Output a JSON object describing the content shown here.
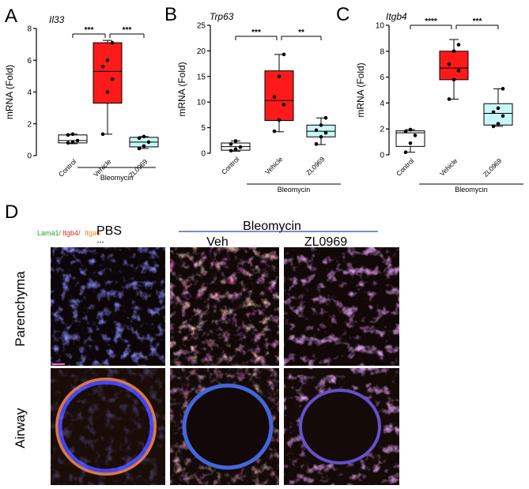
{
  "chart_data": [
    {
      "type": "box",
      "panel": "A",
      "title": "Il33",
      "ylabel": "mRNA (Fold)",
      "ylim": [
        0,
        8
      ],
      "yticks": [
        0,
        2,
        4,
        6,
        8
      ],
      "categories": [
        "Control",
        "Vehicle",
        "ZL0969"
      ],
      "group_label": "Bleomycin",
      "boxes": [
        {
          "name": "Control",
          "min": 0.75,
          "q1": 0.8,
          "median": 0.95,
          "q3": 1.3,
          "max": 1.35,
          "fill": "#ffffff",
          "points": [
            0.8,
            0.85,
            0.95,
            1.3,
            1.35
          ]
        },
        {
          "name": "Vehicle",
          "min": 1.35,
          "q1": 3.3,
          "median": 5.3,
          "q3": 7.1,
          "max": 7.25,
          "fill": "#ff1a1a",
          "points": [
            1.35,
            4.0,
            4.8,
            5.6,
            6.0,
            7.1
          ]
        },
        {
          "name": "ZL0969",
          "min": 0.45,
          "q1": 0.55,
          "median": 0.85,
          "q3": 1.15,
          "max": 1.2,
          "fill": "#c9f7f7",
          "points": [
            0.45,
            0.6,
            0.85,
            1.1,
            1.2
          ]
        }
      ],
      "significance": [
        {
          "from": 0,
          "to": 1,
          "label": "***"
        },
        {
          "from": 1,
          "to": 2,
          "label": "***"
        }
      ]
    },
    {
      "type": "box",
      "panel": "B",
      "title": "Trp63",
      "ylabel": "mRNA (Fold)",
      "ylim": [
        0,
        25
      ],
      "yticks": [
        0,
        5,
        10,
        15,
        20,
        25
      ],
      "categories": [
        "Control",
        "Vehicle",
        "ZL0969"
      ],
      "group_label": "Bleomycin",
      "boxes": [
        {
          "name": "Control",
          "min": 0.4,
          "q1": 0.6,
          "median": 1.3,
          "q3": 2.0,
          "max": 2.4,
          "fill": "#ffffff",
          "points": [
            0.5,
            0.8,
            1.2,
            1.8,
            2.4
          ]
        },
        {
          "name": "Vehicle",
          "min": 4.2,
          "q1": 6.4,
          "median": 10.3,
          "q3": 16.1,
          "max": 19.3,
          "fill": "#ff1a1a",
          "points": [
            4.3,
            6.5,
            9.5,
            11.0,
            15.0,
            19.3
          ]
        },
        {
          "name": "ZL0969",
          "min": 1.7,
          "q1": 3.2,
          "median": 4.3,
          "q3": 5.5,
          "max": 6.9,
          "fill": "#c9f7f7",
          "points": [
            1.8,
            3.2,
            4.0,
            4.5,
            5.5,
            6.9
          ]
        }
      ],
      "significance": [
        {
          "from": 0,
          "to": 1,
          "label": "***"
        },
        {
          "from": 1,
          "to": 2,
          "label": "**"
        }
      ]
    },
    {
      "type": "box",
      "panel": "C",
      "title": "Itgb4",
      "ylabel": "mRNA (Fold)",
      "ylim": [
        0,
        10
      ],
      "yticks": [
        0,
        2,
        4,
        6,
        8,
        10
      ],
      "categories": [
        "Control",
        "Vehicle",
        "ZL0969"
      ],
      "group_label": "Bleomycin",
      "boxes": [
        {
          "name": "Control",
          "min": 0.2,
          "q1": 0.65,
          "median": 1.7,
          "q3": 1.85,
          "max": 1.95,
          "fill": "#ffffff",
          "points": [
            0.2,
            0.9,
            1.5,
            1.8,
            1.95
          ]
        },
        {
          "name": "Vehicle",
          "min": 4.3,
          "q1": 5.8,
          "median": 6.7,
          "q3": 8.0,
          "max": 8.9,
          "fill": "#ff1a1a",
          "points": [
            4.3,
            5.8,
            6.5,
            7.0,
            8.0,
            8.5
          ]
        },
        {
          "name": "ZL0969",
          "min": 2.2,
          "q1": 2.3,
          "median": 3.2,
          "q3": 3.95,
          "max": 5.1,
          "fill": "#c9f7f7",
          "points": [
            2.2,
            2.4,
            3.0,
            3.3,
            3.6,
            5.1
          ]
        }
      ],
      "significance": [
        {
          "from": 0,
          "to": 1,
          "label": "****"
        },
        {
          "from": 1,
          "to": 2,
          "label": "***"
        }
      ]
    }
  ],
  "panels": {
    "a": "A",
    "b": "B",
    "c": "C",
    "d": "D"
  },
  "panel_d": {
    "legend": {
      "lama1": "Lama1/",
      "itgb4": "Itgb4/",
      "itga6": "Itga6",
      "lama1_color": "#1fa83a",
      "itgb4_color": "#e0242b",
      "itga6_color": "#f08a1d"
    },
    "pbs_label": "PBS",
    "pbs_dash": "---",
    "bleomycin_label": "Bleomycin",
    "veh_label": "Veh",
    "zl_label": "ZL0969",
    "row_labels": [
      "Parenchyma",
      "Airway"
    ]
  }
}
